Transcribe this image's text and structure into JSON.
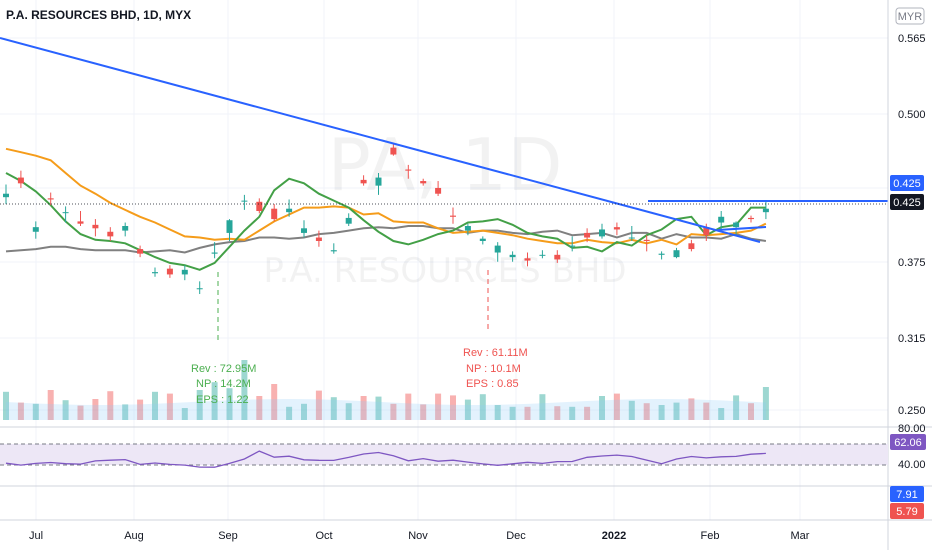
{
  "colors": {
    "up": "#26a69a",
    "down": "#ef5350",
    "ma_short": "#43a047",
    "ma_mid": "#f59c1a",
    "ma_long": "#808080",
    "trendline": "#2962ff",
    "price_tag": "#2962ff",
    "rsi_line": "#7e57c2",
    "rsi_band": "#ede7f6",
    "macd_tag": "#2962ff",
    "signal_tag": "#ef5350"
  },
  "chart_data": {
    "type": "candlestick",
    "title": "P.A. RESOURCES BHD, 1D, MYX",
    "currency": "MYR",
    "watermark_big": "PA, 1D",
    "watermark_sub": "P.A. RESOURCES BHD",
    "ylim": [
      0.24,
      0.58
    ],
    "y_ticks": [
      "0.565",
      "0.500",
      "0.425",
      "0.375",
      "0.315",
      "0.250"
    ],
    "x_ticks": [
      "Jul",
      "Aug",
      "Sep",
      "Oct",
      "Nov",
      "Dec",
      "2022",
      "Feb",
      "Mar"
    ],
    "price_tags": [
      "0.425",
      "0.425"
    ],
    "ma_short": [
      0.456,
      0.449,
      0.44,
      0.428,
      0.414,
      0.403,
      0.398,
      0.397,
      0.395,
      0.389,
      0.383,
      0.378,
      0.376,
      0.372,
      0.378,
      0.392,
      0.406,
      0.418,
      0.441,
      0.451,
      0.447,
      0.438,
      0.432,
      0.426,
      0.415,
      0.405,
      0.397,
      0.394,
      0.398,
      0.403,
      0.406,
      0.413,
      0.414,
      0.416,
      0.411,
      0.404,
      0.401,
      0.399,
      0.391,
      0.392,
      0.388,
      0.396,
      0.393,
      0.402,
      0.407,
      0.416,
      0.418,
      0.402,
      0.409,
      0.411,
      0.426,
      0.426
    ],
    "ma_mid": [
      0.477,
      0.474,
      0.471,
      0.467,
      0.456,
      0.445,
      0.438,
      0.43,
      0.424,
      0.418,
      0.413,
      0.407,
      0.401,
      0.4,
      0.398,
      0.399,
      0.398,
      0.406,
      0.414,
      0.42,
      0.426,
      0.426,
      0.427,
      0.426,
      0.42,
      0.421,
      0.414,
      0.413,
      0.413,
      0.408,
      0.404,
      0.405,
      0.406,
      0.404,
      0.402,
      0.399,
      0.397,
      0.395,
      0.395,
      0.398,
      0.396,
      0.395,
      0.398,
      0.395,
      0.398,
      0.394,
      0.403,
      0.402,
      0.403,
      0.404,
      0.406,
      0.412
    ],
    "ma_long": [
      0.388,
      0.389,
      0.39,
      0.392,
      0.392,
      0.39,
      0.389,
      0.389,
      0.389,
      0.387,
      0.388,
      0.389,
      0.387,
      0.391,
      0.394,
      0.396,
      0.397,
      0.4,
      0.4,
      0.399,
      0.4,
      0.403,
      0.404,
      0.406,
      0.408,
      0.409,
      0.408,
      0.41,
      0.41,
      0.408,
      0.408,
      0.404,
      0.406,
      0.406,
      0.404,
      0.403,
      0.405,
      0.406,
      0.402,
      0.403,
      0.404,
      0.4,
      0.404,
      0.404,
      0.399,
      0.403,
      0.4,
      0.4,
      0.399,
      0.403,
      0.399,
      0.397
    ],
    "candles": [
      {
        "o": 0.435,
        "h": 0.446,
        "l": 0.429,
        "c": 0.438,
        "v": 0.47
      },
      {
        "o": 0.452,
        "h": 0.458,
        "l": 0.443,
        "c": 0.447,
        "v": 0.29
      },
      {
        "o": 0.405,
        "h": 0.414,
        "l": 0.399,
        "c": 0.409,
        "v": 0.27
      },
      {
        "o": 0.434,
        "h": 0.439,
        "l": 0.428,
        "c": 0.433,
        "v": 0.5
      },
      {
        "o": 0.422,
        "h": 0.427,
        "l": 0.413,
        "c": 0.422,
        "v": 0.33
      },
      {
        "o": 0.414,
        "h": 0.423,
        "l": 0.41,
        "c": 0.412,
        "v": 0.24
      },
      {
        "o": 0.411,
        "h": 0.416,
        "l": 0.401,
        "c": 0.408,
        "v": 0.35
      },
      {
        "o": 0.405,
        "h": 0.409,
        "l": 0.397,
        "c": 0.401,
        "v": 0.48
      },
      {
        "o": 0.406,
        "h": 0.413,
        "l": 0.401,
        "c": 0.41,
        "v": 0.26
      },
      {
        "o": 0.39,
        "h": 0.393,
        "l": 0.383,
        "c": 0.386,
        "v": 0.34
      },
      {
        "o": 0.369,
        "h": 0.374,
        "l": 0.366,
        "c": 0.37,
        "v": 0.47
      },
      {
        "o": 0.373,
        "h": 0.376,
        "l": 0.365,
        "c": 0.368,
        "v": 0.44
      },
      {
        "o": 0.368,
        "h": 0.376,
        "l": 0.363,
        "c": 0.372,
        "v": 0.2
      },
      {
        "o": 0.356,
        "h": 0.362,
        "l": 0.351,
        "c": 0.356,
        "v": 0.5
      },
      {
        "o": 0.386,
        "h": 0.396,
        "l": 0.382,
        "c": 0.387,
        "v": 0.63
      },
      {
        "o": 0.404,
        "h": 0.416,
        "l": 0.397,
        "c": 0.415,
        "v": 0.53
      },
      {
        "o": 0.432,
        "h": 0.437,
        "l": 0.424,
        "c": 0.432,
        "v": 1.0
      },
      {
        "o": 0.431,
        "h": 0.434,
        "l": 0.421,
        "c": 0.423,
        "v": 0.4
      },
      {
        "o": 0.425,
        "h": 0.429,
        "l": 0.414,
        "c": 0.416,
        "v": 0.6
      },
      {
        "o": 0.422,
        "h": 0.433,
        "l": 0.418,
        "c": 0.425,
        "v": 0.22
      },
      {
        "o": 0.404,
        "h": 0.415,
        "l": 0.4,
        "c": 0.408,
        "v": 0.27
      },
      {
        "o": 0.4,
        "h": 0.406,
        "l": 0.392,
        "c": 0.397,
        "v": 0.49
      },
      {
        "o": 0.388,
        "h": 0.395,
        "l": 0.386,
        "c": 0.389,
        "v": 0.38
      },
      {
        "o": 0.412,
        "h": 0.421,
        "l": 0.41,
        "c": 0.417,
        "v": 0.28
      },
      {
        "o": 0.45,
        "h": 0.454,
        "l": 0.445,
        "c": 0.447,
        "v": 0.4
      },
      {
        "o": 0.445,
        "h": 0.456,
        "l": 0.437,
        "c": 0.452,
        "v": 0.39
      },
      {
        "o": 0.478,
        "h": 0.482,
        "l": 0.471,
        "c": 0.472,
        "v": 0.27
      },
      {
        "o": 0.459,
        "h": 0.463,
        "l": 0.451,
        "c": 0.458,
        "v": 0.44
      },
      {
        "o": 0.449,
        "h": 0.451,
        "l": 0.445,
        "c": 0.447,
        "v": 0.26
      },
      {
        "o": 0.443,
        "h": 0.449,
        "l": 0.436,
        "c": 0.438,
        "v": 0.44
      },
      {
        "o": 0.419,
        "h": 0.426,
        "l": 0.412,
        "c": 0.418,
        "v": 0.41
      },
      {
        "o": 0.406,
        "h": 0.412,
        "l": 0.402,
        "c": 0.41,
        "v": 0.34
      },
      {
        "o": 0.397,
        "h": 0.401,
        "l": 0.394,
        "c": 0.399,
        "v": 0.43
      },
      {
        "o": 0.387,
        "h": 0.396,
        "l": 0.379,
        "c": 0.393,
        "v": 0.25
      },
      {
        "o": 0.383,
        "h": 0.388,
        "l": 0.379,
        "c": 0.385,
        "v": 0.22
      },
      {
        "o": 0.382,
        "h": 0.387,
        "l": 0.375,
        "c": 0.38,
        "v": 0.22
      },
      {
        "o": 0.385,
        "h": 0.389,
        "l": 0.382,
        "c": 0.385,
        "v": 0.43
      },
      {
        "o": 0.385,
        "h": 0.389,
        "l": 0.378,
        "c": 0.381,
        "v": 0.23
      },
      {
        "o": 0.393,
        "h": 0.401,
        "l": 0.388,
        "c": 0.393,
        "v": 0.22
      },
      {
        "o": 0.404,
        "h": 0.408,
        "l": 0.396,
        "c": 0.4,
        "v": 0.22
      },
      {
        "o": 0.401,
        "h": 0.412,
        "l": 0.399,
        "c": 0.407,
        "v": 0.4
      },
      {
        "o": 0.409,
        "h": 0.413,
        "l": 0.402,
        "c": 0.407,
        "v": 0.44
      },
      {
        "o": 0.4,
        "h": 0.41,
        "l": 0.397,
        "c": 0.4,
        "v": 0.32
      },
      {
        "o": 0.398,
        "h": 0.402,
        "l": 0.388,
        "c": 0.397,
        "v": 0.28
      },
      {
        "o": 0.385,
        "h": 0.388,
        "l": 0.381,
        "c": 0.386,
        "v": 0.25
      },
      {
        "o": 0.383,
        "h": 0.391,
        "l": 0.382,
        "c": 0.389,
        "v": 0.29
      },
      {
        "o": 0.395,
        "h": 0.398,
        "l": 0.388,
        "c": 0.39,
        "v": 0.36
      },
      {
        "o": 0.409,
        "h": 0.412,
        "l": 0.397,
        "c": 0.402,
        "v": 0.29
      },
      {
        "o": 0.413,
        "h": 0.423,
        "l": 0.406,
        "c": 0.418,
        "v": 0.2
      },
      {
        "o": 0.409,
        "h": 0.414,
        "l": 0.401,
        "c": 0.413,
        "v": 0.41
      },
      {
        "o": 0.417,
        "h": 0.419,
        "l": 0.413,
        "c": 0.416,
        "v": 0.28
      },
      {
        "o": 0.422,
        "h": 0.431,
        "l": 0.416,
        "c": 0.425,
        "v": 0.55
      }
    ],
    "rsi_values": [
      43.5,
      39.9,
      43.0,
      44.8,
      42.5,
      41.8,
      47.8,
      49.2,
      50.3,
      41.1,
      43.9,
      41.1,
      39.8,
      36.0,
      35.9,
      43.0,
      51.5,
      66.4,
      54.8,
      56.8,
      50.0,
      48.9,
      48.8,
      54.5,
      60.9,
      63.8,
      57.8,
      48.0,
      52.2,
      47.2,
      49.1,
      45.6,
      42.0,
      39.4,
      42.3,
      45.1,
      43.0,
      46.5,
      46.7,
      54.7,
      57.2,
      58.8,
      56.1,
      49.4,
      42.4,
      51.4,
      56.1,
      53.5,
      55.6,
      56.4,
      60.5,
      62.1
    ],
    "rsi_ticks": [
      "80.00",
      "40.00"
    ],
    "rsi_tag": "62.06",
    "macd_tag": "7.91",
    "signal_tag": "5.79",
    "annotations": [
      {
        "label": "Rev : 72.95M",
        "np": "NP : 14.2M",
        "eps": "EPS : 1.22",
        "color": "#4caf50"
      },
      {
        "label": "Rev : 61.11M",
        "np": "NP : 10.1M",
        "eps": "EPS : 0.85",
        "color": "#ef5350"
      }
    ]
  }
}
